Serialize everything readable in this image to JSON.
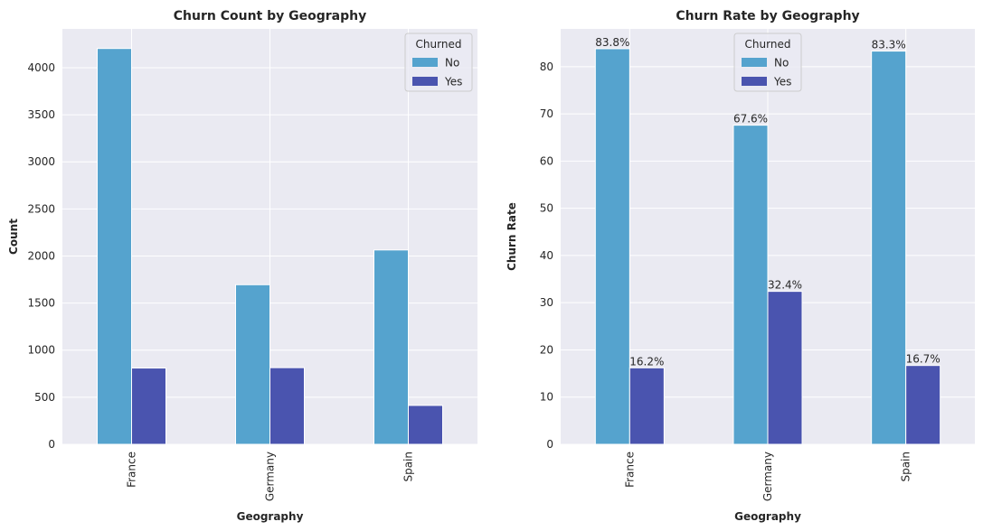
{
  "chart_data": [
    {
      "type": "bar",
      "title": "Churn Count by Geography",
      "xlabel": "Geography",
      "ylabel": "Count",
      "categories": [
        "France",
        "Germany",
        "Spain"
      ],
      "series": [
        {
          "name": "No",
          "values": [
            4204,
            1695,
            2064
          ]
        },
        {
          "name": "Yes",
          "values": [
            810,
            814,
            413
          ]
        }
      ],
      "ylim": [
        0,
        4412
      ],
      "yticks": [
        0,
        500,
        1000,
        1500,
        2000,
        2500,
        3000,
        3500,
        4000
      ],
      "legend": {
        "title": "Churned",
        "position": "top-right"
      },
      "grid": true,
      "colors": [
        "#55a3ce",
        "#4a54af"
      ]
    },
    {
      "type": "bar",
      "title": "Churn Rate by Geography",
      "xlabel": "Geography",
      "ylabel": "Churn Rate",
      "categories": [
        "France",
        "Germany",
        "Spain"
      ],
      "series": [
        {
          "name": "No",
          "values": [
            83.8,
            67.6,
            83.3
          ],
          "labels": [
            "83.8%",
            "67.6%",
            "83.3%"
          ]
        },
        {
          "name": "Yes",
          "values": [
            16.2,
            32.4,
            16.7
          ],
          "labels": [
            "16.2%",
            "32.4%",
            "16.7%"
          ]
        }
      ],
      "ylim": [
        0,
        88.0
      ],
      "yticks": [
        0,
        10,
        20,
        30,
        40,
        50,
        60,
        70,
        80
      ],
      "legend": {
        "title": "Churned",
        "position": "top-center"
      },
      "grid": true,
      "colors": [
        "#55a3ce",
        "#4a54af"
      ]
    }
  ]
}
